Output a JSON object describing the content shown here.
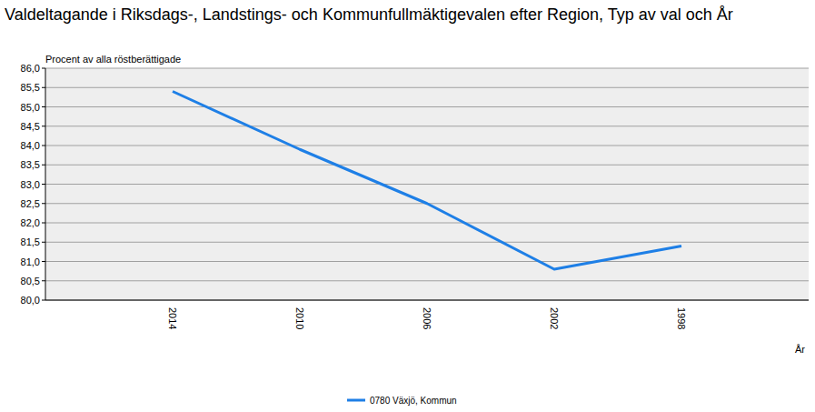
{
  "chart_data": {
    "type": "line",
    "title": "Valdeltagande i Riksdags-, Landstings- och Kommunfullmäktigevalen efter Region, Typ av val och År",
    "y_label": "Procent av alla röstberättigade",
    "x_label": "År",
    "categories": [
      "2014",
      "2010",
      "2006",
      "2002",
      "1998"
    ],
    "series": [
      {
        "name": "0780 Växjö, Kommun",
        "color": "#1e7fe6",
        "values": [
          85.4,
          83.9,
          82.5,
          80.8,
          81.4
        ]
      }
    ],
    "ylim": [
      80,
      86
    ],
    "yticks": [
      {
        "value": 80,
        "label": "80,0"
      },
      {
        "value": 80.5,
        "label": "80,5"
      },
      {
        "value": 81,
        "label": "81,0"
      },
      {
        "value": 81.5,
        "label": "81,5"
      },
      {
        "value": 82,
        "label": "82,0"
      },
      {
        "value": 82.5,
        "label": "82,5"
      },
      {
        "value": 83,
        "label": "83,0"
      },
      {
        "value": 83.5,
        "label": "83,5"
      },
      {
        "value": 84,
        "label": "84,0"
      },
      {
        "value": 84.5,
        "label": "84,5"
      },
      {
        "value": 85,
        "label": "85,0"
      },
      {
        "value": 85.5,
        "label": "85,5"
      },
      {
        "value": 86,
        "label": "86,0"
      }
    ],
    "grid": true,
    "legend": "bottom"
  }
}
